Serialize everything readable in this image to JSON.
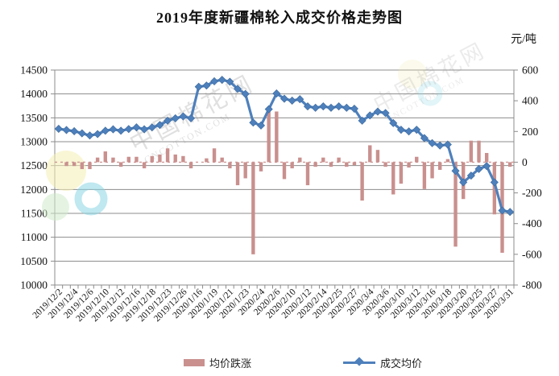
{
  "title": "2019年度新疆棉轮入成交价格走势图",
  "unit_label": "元/吨",
  "legend": {
    "bar_label": "均价跌涨",
    "line_label": "成交均价"
  },
  "watermark": {
    "line1": "中国棉花网",
    "line2": "CNCOTTON.COM"
  },
  "chart_data": {
    "type": "line+bar combo",
    "title": "2019年度新疆棉轮入成交价格走势图",
    "unit": "元/吨",
    "x_tick_labels": [
      "2019/12/2",
      "2019/12/4",
      "2019/12/6",
      "2019/12/10",
      "2019/12/12",
      "2019/12/16",
      "2019/12/18",
      "2019/12/23",
      "2019/12/26",
      "2020/1/16",
      "2020/1/19",
      "2020/1/21",
      "2020/1/23",
      "2020/2/4",
      "2020/2/6",
      "2020/2/10",
      "2020/2/12",
      "2020/2/14",
      "2020/2/25",
      "2020/2/27",
      "2020/3/4",
      "2020/3/6",
      "2020/3/10",
      "2020/3/12",
      "2020/3/16",
      "2020/3/18",
      "2020/3/20",
      "2020/3/25",
      "2020/3/27",
      "2020/3/31"
    ],
    "x_labels_note": "tick labels are shown for every other of the 59 data points",
    "left_axis": {
      "min": 10000,
      "max": 14500,
      "step": 500,
      "tick_labels": [
        "14500",
        "14000",
        "13500",
        "13000",
        "12500",
        "12000",
        "11500",
        "11000",
        "10500",
        "10000"
      ]
    },
    "right_axis": {
      "min": -800,
      "max": 600,
      "step": 200,
      "tick_labels": [
        "600",
        "400",
        "200",
        "0",
        "-200",
        "-400",
        "-600",
        "-800"
      ]
    },
    "grid": true,
    "legend_position": "bottom",
    "series": [
      {
        "name": "成交均价",
        "type": "line",
        "axis": "left",
        "color": "#4E80BC",
        "marker": "diamond",
        "values": [
          13270,
          13245,
          13220,
          13175,
          13130,
          13160,
          13230,
          13260,
          13230,
          13265,
          13300,
          13260,
          13300,
          13350,
          13440,
          13490,
          13530,
          13490,
          14150,
          14175,
          14265,
          14295,
          14255,
          14105,
          14000,
          13400,
          13340,
          13680,
          14010,
          13900,
          13860,
          13890,
          13740,
          13710,
          13740,
          13710,
          13740,
          13710,
          13690,
          13440,
          13550,
          13630,
          13600,
          13390,
          13250,
          13215,
          13250,
          13075,
          12970,
          12920,
          12940,
          12390,
          12150,
          12290,
          12430,
          12490,
          12150,
          11560,
          11530
        ]
      },
      {
        "name": "均价跌涨",
        "type": "bar",
        "axis": "right",
        "color": "#C9908E",
        "values": [
          0,
          -25,
          -25,
          -45,
          -45,
          30,
          70,
          30,
          -30,
          35,
          35,
          -40,
          40,
          50,
          90,
          50,
          40,
          -40,
          0,
          25,
          90,
          30,
          -40,
          -150,
          -105,
          -600,
          -60,
          340,
          330,
          -110,
          -40,
          30,
          -150,
          -30,
          30,
          -30,
          30,
          -30,
          -20,
          -250,
          110,
          80,
          -30,
          -210,
          -140,
          -35,
          35,
          -175,
          -105,
          -50,
          20,
          -550,
          -240,
          140,
          140,
          60,
          -340,
          -590,
          -30
        ]
      }
    ]
  }
}
